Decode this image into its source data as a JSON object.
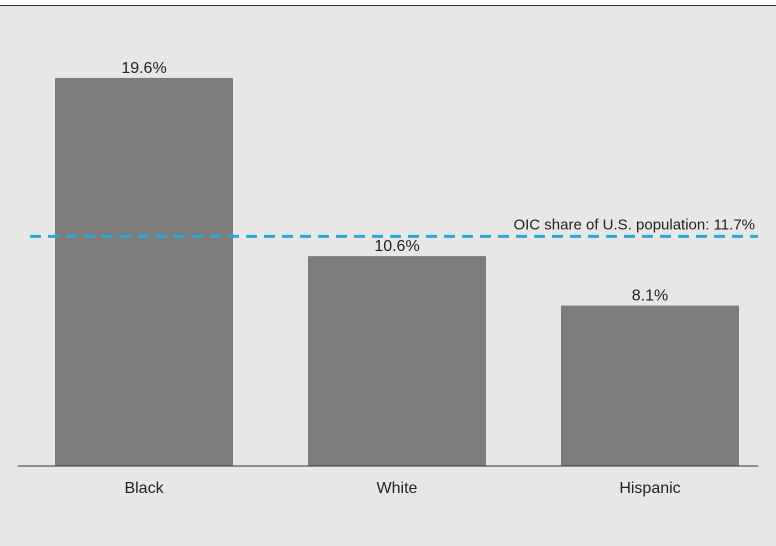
{
  "chart_data": {
    "type": "bar",
    "categories": [
      "Black",
      "White",
      "Hispanic"
    ],
    "values": [
      19.6,
      10.6,
      8.1
    ],
    "value_labels": [
      "19.6%",
      "10.6%",
      "8.1%"
    ],
    "unit": "%",
    "title": "",
    "xlabel": "",
    "ylabel": "",
    "ylim": [
      0,
      21.7
    ],
    "grid": false,
    "legend": "none",
    "reference_line": {
      "value": 11.7,
      "label": "OIC share of U.S. population: 11.7%",
      "style": "dashed"
    },
    "colors": {
      "bar": "#7d7d7b",
      "reference_line": "#2ea6dc",
      "background": "#e7e7e8",
      "axis": "#333333"
    }
  }
}
